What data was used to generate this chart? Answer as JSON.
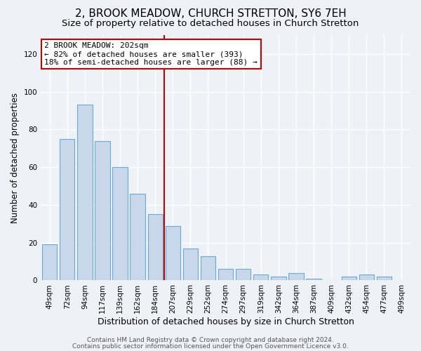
{
  "title": "2, BROOK MEADOW, CHURCH STRETTON, SY6 7EH",
  "subtitle": "Size of property relative to detached houses in Church Stretton",
  "xlabel": "Distribution of detached houses by size in Church Stretton",
  "ylabel": "Number of detached properties",
  "bar_color": "#c8d8ea",
  "bar_edge_color": "#6aaad4",
  "categories": [
    "49sqm",
    "72sqm",
    "94sqm",
    "117sqm",
    "139sqm",
    "162sqm",
    "184sqm",
    "207sqm",
    "229sqm",
    "252sqm",
    "274sqm",
    "297sqm",
    "319sqm",
    "342sqm",
    "364sqm",
    "387sqm",
    "409sqm",
    "432sqm",
    "454sqm",
    "477sqm",
    "499sqm"
  ],
  "values": [
    19,
    75,
    93,
    74,
    60,
    46,
    35,
    29,
    17,
    13,
    6,
    6,
    3,
    2,
    4,
    1,
    0,
    2,
    3,
    2,
    0
  ],
  "ylim": [
    0,
    130
  ],
  "yticks": [
    0,
    20,
    40,
    60,
    80,
    100,
    120
  ],
  "property_line_x": 6.5,
  "property_line_color": "#cc0000",
  "annotation_line1": "2 BROOK MEADOW: 202sqm",
  "annotation_line2": "← 82% of detached houses are smaller (393)",
  "annotation_line3": "18% of semi-detached houses are larger (88) →",
  "annotation_box_color": "#ffffff",
  "annotation_box_edge": "#cc0000",
  "footer_line1": "Contains HM Land Registry data © Crown copyright and database right 2024.",
  "footer_line2": "Contains public sector information licensed under the Open Government Licence v3.0.",
  "background_color": "#eef2f7",
  "grid_color": "#ffffff",
  "title_fontsize": 11,
  "subtitle_fontsize": 9.5,
  "xlabel_fontsize": 9,
  "ylabel_fontsize": 8.5,
  "tick_fontsize": 7.5,
  "annotation_fontsize": 8,
  "footer_fontsize": 6.5
}
